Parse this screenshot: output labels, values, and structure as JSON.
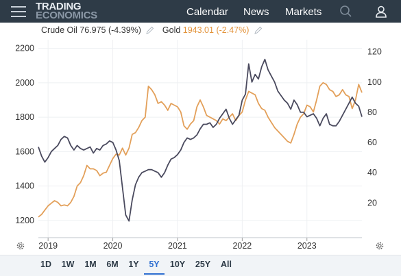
{
  "header": {
    "logo_line1": "TRADING",
    "logo_line2": "ECONOMICS",
    "nav": [
      "Calendar",
      "News",
      "Markets"
    ]
  },
  "icons": {
    "menu": "hamburger-menu-icon",
    "search": "search-icon",
    "user": "user-icon",
    "edit": "pencil-icon",
    "settings": "gear-icon"
  },
  "legend": {
    "oil_name": "Crude Oil",
    "oil_value": "76.975 (-4.39%)",
    "gold_name": "Gold",
    "gold_value": "1943.01 (-2.47%)"
  },
  "colors": {
    "oil": "#4a4a5e",
    "gold": "#e3a05a",
    "header_bg": "#2e3b47",
    "active": "#2f6fd1"
  },
  "range_buttons": [
    "1D",
    "1W",
    "1M",
    "6M",
    "1Y",
    "5Y",
    "10Y",
    "25Y",
    "All"
  ],
  "active_range": "5Y",
  "chart_data": {
    "type": "line",
    "left_axis": {
      "ticks": [
        "2200",
        "2000",
        "1800",
        "1600",
        "1400",
        "1200"
      ],
      "range": [
        1100,
        2250
      ]
    },
    "right_axis": {
      "ticks": [
        "120",
        "100",
        "80",
        "60",
        "40",
        "20"
      ],
      "range": [
        -3,
        128
      ]
    },
    "x_axis": {
      "ticks": [
        "2019",
        "2020",
        "2021",
        "2022",
        "2023"
      ],
      "range": [
        2018.85,
        2023.85
      ]
    },
    "series": [
      {
        "name": "Crude Oil",
        "axis": "right",
        "x": [
          2018.85,
          2018.9,
          2018.95,
          2019.0,
          2019.05,
          2019.1,
          2019.15,
          2019.2,
          2019.25,
          2019.3,
          2019.35,
          2019.4,
          2019.45,
          2019.5,
          2019.55,
          2019.6,
          2019.65,
          2019.7,
          2019.75,
          2019.8,
          2019.85,
          2019.9,
          2019.95,
          2020.0,
          2020.05,
          2020.1,
          2020.15,
          2020.2,
          2020.25,
          2020.3,
          2020.35,
          2020.4,
          2020.45,
          2020.5,
          2020.55,
          2020.6,
          2020.65,
          2020.7,
          2020.75,
          2020.8,
          2020.85,
          2020.9,
          2020.95,
          2021.0,
          2021.05,
          2021.1,
          2021.15,
          2021.2,
          2021.25,
          2021.3,
          2021.35,
          2021.4,
          2021.45,
          2021.5,
          2021.55,
          2021.6,
          2021.65,
          2021.7,
          2021.75,
          2021.8,
          2021.85,
          2021.9,
          2021.95,
          2022.0,
          2022.05,
          2022.1,
          2022.15,
          2022.2,
          2022.25,
          2022.3,
          2022.35,
          2022.4,
          2022.45,
          2022.5,
          2022.55,
          2022.6,
          2022.65,
          2022.7,
          2022.75,
          2022.8,
          2022.85,
          2022.9,
          2022.95,
          2023.0,
          2023.05,
          2023.1,
          2023.15,
          2023.2,
          2023.25,
          2023.3,
          2023.35,
          2023.4,
          2023.45,
          2023.5,
          2023.55,
          2023.6,
          2023.65,
          2023.7,
          2023.75,
          2023.8,
          2023.85
        ],
        "y": [
          57,
          51,
          47,
          50,
          54,
          56,
          58,
          62,
          64,
          63,
          58,
          55,
          58,
          56,
          55,
          56,
          57,
          53,
          56,
          55,
          58,
          59,
          61,
          60,
          55,
          48,
          30,
          12,
          8,
          22,
          32,
          37,
          40,
          41,
          42,
          42,
          41,
          40,
          37,
          40,
          45,
          49,
          50,
          52,
          55,
          60,
          63,
          62,
          63,
          65,
          69,
          72,
          72,
          73,
          70,
          72,
          76,
          79,
          82,
          76,
          72,
          75,
          78,
          88,
          92,
          112,
          100,
          105,
          102,
          110,
          115,
          108,
          104,
          100,
          94,
          91,
          88,
          86,
          82,
          88,
          85,
          80,
          80,
          77,
          78,
          79,
          76,
          71,
          76,
          79,
          72,
          71,
          71,
          74,
          78,
          82,
          86,
          90,
          86,
          84,
          77
        ]
      },
      {
        "name": "Gold",
        "axis": "left",
        "x": [
          2018.85,
          2018.9,
          2018.95,
          2019.0,
          2019.05,
          2019.1,
          2019.15,
          2019.2,
          2019.25,
          2019.3,
          2019.35,
          2019.4,
          2019.45,
          2019.5,
          2019.55,
          2019.6,
          2019.65,
          2019.7,
          2019.75,
          2019.8,
          2019.85,
          2019.9,
          2019.95,
          2020.0,
          2020.05,
          2020.1,
          2020.15,
          2020.2,
          2020.25,
          2020.3,
          2020.35,
          2020.4,
          2020.45,
          2020.5,
          2020.55,
          2020.6,
          2020.65,
          2020.7,
          2020.75,
          2020.8,
          2020.85,
          2020.9,
          2020.95,
          2021.0,
          2021.05,
          2021.1,
          2021.15,
          2021.2,
          2021.25,
          2021.3,
          2021.35,
          2021.4,
          2021.45,
          2021.5,
          2021.55,
          2021.6,
          2021.65,
          2021.7,
          2021.75,
          2021.8,
          2021.85,
          2021.9,
          2021.95,
          2022.0,
          2022.05,
          2022.1,
          2022.15,
          2022.2,
          2022.25,
          2022.3,
          2022.35,
          2022.4,
          2022.45,
          2022.5,
          2022.55,
          2022.6,
          2022.65,
          2022.7,
          2022.75,
          2022.8,
          2022.85,
          2022.9,
          2022.95,
          2023.0,
          2023.05,
          2023.1,
          2023.15,
          2023.2,
          2023.25,
          2023.3,
          2023.35,
          2023.4,
          2023.45,
          2023.5,
          2023.55,
          2023.6,
          2023.65,
          2023.7,
          2023.75,
          2023.8,
          2023.85
        ],
        "y": [
          1220,
          1235,
          1260,
          1285,
          1300,
          1315,
          1305,
          1285,
          1290,
          1285,
          1305,
          1340,
          1400,
          1420,
          1460,
          1520,
          1500,
          1500,
          1490,
          1460,
          1475,
          1480,
          1520,
          1560,
          1585,
          1580,
          1620,
          1580,
          1620,
          1700,
          1710,
          1740,
          1780,
          1800,
          1980,
          1960,
          1930,
          1880,
          1890,
          1870,
          1840,
          1880,
          1870,
          1860,
          1830,
          1750,
          1730,
          1760,
          1780,
          1860,
          1900,
          1860,
          1810,
          1800,
          1790,
          1780,
          1760,
          1790,
          1780,
          1800,
          1820,
          1780,
          1810,
          1830,
          1900,
          1950,
          1940,
          1930,
          1880,
          1850,
          1840,
          1800,
          1770,
          1740,
          1720,
          1700,
          1680,
          1660,
          1650,
          1700,
          1760,
          1800,
          1820,
          1870,
          1860,
          1830,
          1900,
          1980,
          2000,
          1990,
          1960,
          1950,
          1920,
          1930,
          1960,
          1930,
          1920,
          1850,
          1900,
          1990,
          1943
        ]
      }
    ]
  }
}
